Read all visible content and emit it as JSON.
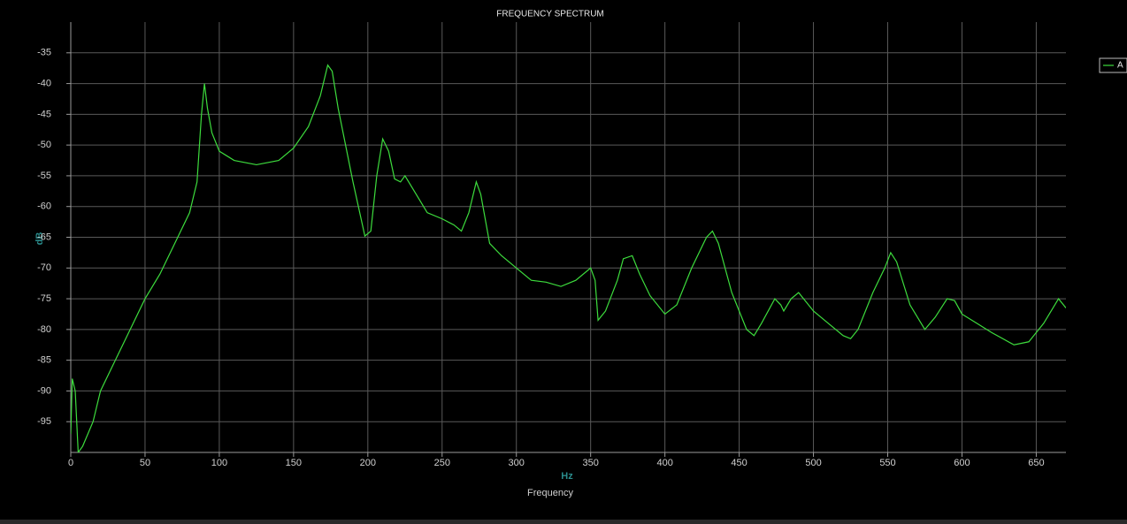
{
  "chart_data": {
    "type": "line",
    "title": "FREQUENCY SPECTRUM",
    "x_label": "Frequency",
    "x_unit": "Hz",
    "y_label": "dB",
    "x": [
      0,
      1,
      3,
      5,
      8,
      15,
      20,
      30,
      40,
      50,
      60,
      70,
      80,
      85,
      88,
      90,
      92,
      95,
      100,
      110,
      125,
      140,
      150,
      160,
      168,
      173,
      176,
      180,
      190,
      198,
      202,
      206,
      210,
      214,
      218,
      222,
      225,
      230,
      240,
      250,
      258,
      263,
      268,
      273,
      276,
      282,
      290,
      300,
      310,
      320,
      330,
      340,
      350,
      353,
      355,
      360,
      368,
      372,
      378,
      383,
      390,
      400,
      408,
      418,
      428,
      432,
      436,
      445,
      455,
      460,
      465,
      474,
      478,
      480,
      485,
      490,
      500,
      510,
      520,
      525,
      530,
      540,
      548,
      552,
      556,
      565,
      575,
      582,
      590,
      595,
      600,
      610,
      620,
      635,
      645,
      655,
      665,
      670
    ],
    "series": [
      {
        "name": "A",
        "color": "#3ddc3d",
        "values": [
          -97,
          -88,
          -90,
          -100,
          -99,
          -95,
          -90,
          -85,
          -80,
          -75,
          -71,
          -66,
          -61,
          -56,
          -45,
          -40,
          -44,
          -48,
          -51,
          -52.5,
          -53.2,
          -52.5,
          -50.5,
          -47,
          -42,
          -37,
          -38,
          -44,
          -56,
          -64.8,
          -64,
          -55,
          -49,
          -51,
          -55.5,
          -56,
          -55,
          -57,
          -61,
          -62,
          -63,
          -64,
          -61,
          -56,
          -58,
          -66,
          -68,
          -70,
          -72,
          -72.3,
          -73,
          -72,
          -70,
          -72,
          -78.5,
          -77,
          -72,
          -68.5,
          -68,
          -71,
          -74.5,
          -77.5,
          -76,
          -70,
          -65,
          -64,
          -66,
          -74,
          -80,
          -81,
          -79,
          -75,
          -76,
          -77,
          -75,
          -74,
          -77,
          -79,
          -81,
          -81.5,
          -80,
          -74,
          -70,
          -67.5,
          -69,
          -76,
          -80,
          -78,
          -75,
          -75.3,
          -77.5,
          -79,
          -80.5,
          -82.5,
          -82,
          -79,
          -75,
          -76.5
        ]
      }
    ],
    "xlim": [
      0,
      670
    ],
    "ylim": [
      -100,
      -30
    ],
    "xticks": [
      0,
      50,
      100,
      150,
      200,
      250,
      300,
      350,
      400,
      450,
      500,
      550,
      600,
      650
    ],
    "yticks": [
      -95,
      -90,
      -85,
      -80,
      -75,
      -70,
      -65,
      -60,
      -55,
      -50,
      -45,
      -40,
      -35
    ],
    "grid": true,
    "legend": "top-right"
  }
}
